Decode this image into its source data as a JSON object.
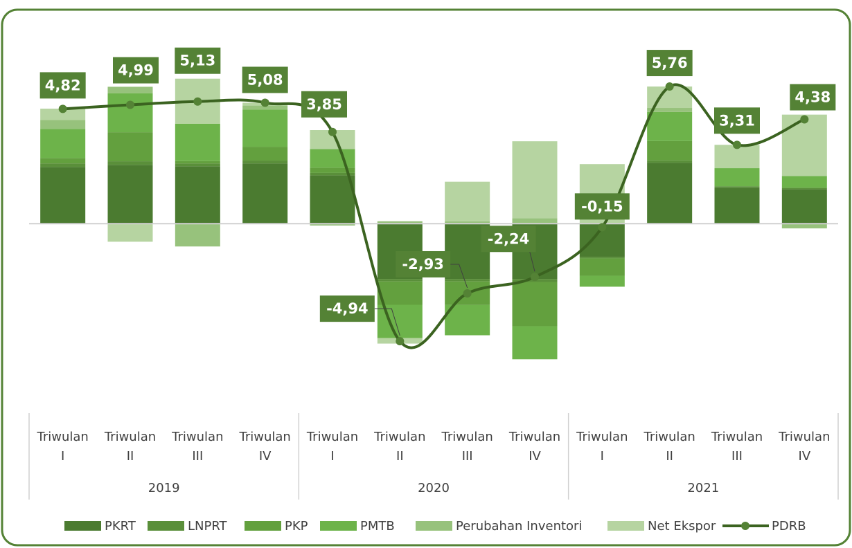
{
  "chart_data": {
    "type": "stacked_bar_line",
    "groups": [
      {
        "name": "2019",
        "categories": [
          "Triwulan I",
          "Triwulan II",
          "Triwulan III",
          "Triwulan IV"
        ]
      },
      {
        "name": "2020",
        "categories": [
          "Triwulan I",
          "Triwulan II",
          "Triwulan III",
          "Triwulan IV"
        ]
      },
      {
        "name": "2021",
        "categories": [
          "Triwulan I",
          "Triwulan II",
          "Triwulan III",
          "Triwulan IV"
        ]
      }
    ],
    "ylim": [
      -7,
      8
    ],
    "series": [
      {
        "name": "PKRT",
        "color": "#4b7b30",
        "values": [
          2.38,
          2.47,
          2.41,
          2.53,
          2.03,
          -2.33,
          -2.33,
          -2.33,
          -1.4,
          2.56,
          1.51,
          1.45
        ]
      },
      {
        "name": "LNPRT",
        "color": "#5a8f3a",
        "values": [
          0.15,
          0.15,
          0.12,
          0.12,
          0.1,
          -0.1,
          -0.1,
          -0.12,
          -0.06,
          0.1,
          0.06,
          0.06
        ]
      },
      {
        "name": "PKP",
        "color": "#63a03e",
        "values": [
          0.23,
          1.22,
          0.1,
          0.58,
          0.22,
          -0.98,
          -0.99,
          -1.86,
          -0.73,
          0.81,
          0,
          0
        ]
      },
      {
        "name": "PMTB",
        "color": "#6db34a",
        "values": [
          1.22,
          1.64,
          1.57,
          1.56,
          0.78,
          -1.4,
          -1.27,
          -1.39,
          -0.46,
          1.22,
          0.76,
          0.49
        ]
      },
      {
        "name": "Perubahan Inventori",
        "color": "#97c27c",
        "values": [
          0.38,
          0.27,
          -0.96,
          0.17,
          -0.08,
          0.1,
          0.1,
          0.23,
          0,
          0.17,
          0,
          -0.2
        ]
      },
      {
        "name": "Net Ekspor",
        "color": "#b6d4a1",
        "values": [
          0.47,
          -0.76,
          1.89,
          0.12,
          0.8,
          -0.23,
          1.66,
          3.23,
          2.5,
          0.9,
          0.98,
          2.58
        ]
      }
    ],
    "line": {
      "name": "PDRB",
      "color": "#3b6320",
      "values": [
        4.82,
        4.99,
        5.13,
        5.08,
        3.85,
        -4.94,
        -2.93,
        -2.24,
        -0.15,
        5.76,
        3.31,
        4.38
      ],
      "value_labels": [
        "4,82",
        "4,99",
        "5,13",
        "5,08",
        "3,85",
        "-4,94",
        "-2,93",
        "-2,24",
        "-0,15",
        "5,76",
        "3,31",
        "4,38"
      ]
    }
  }
}
